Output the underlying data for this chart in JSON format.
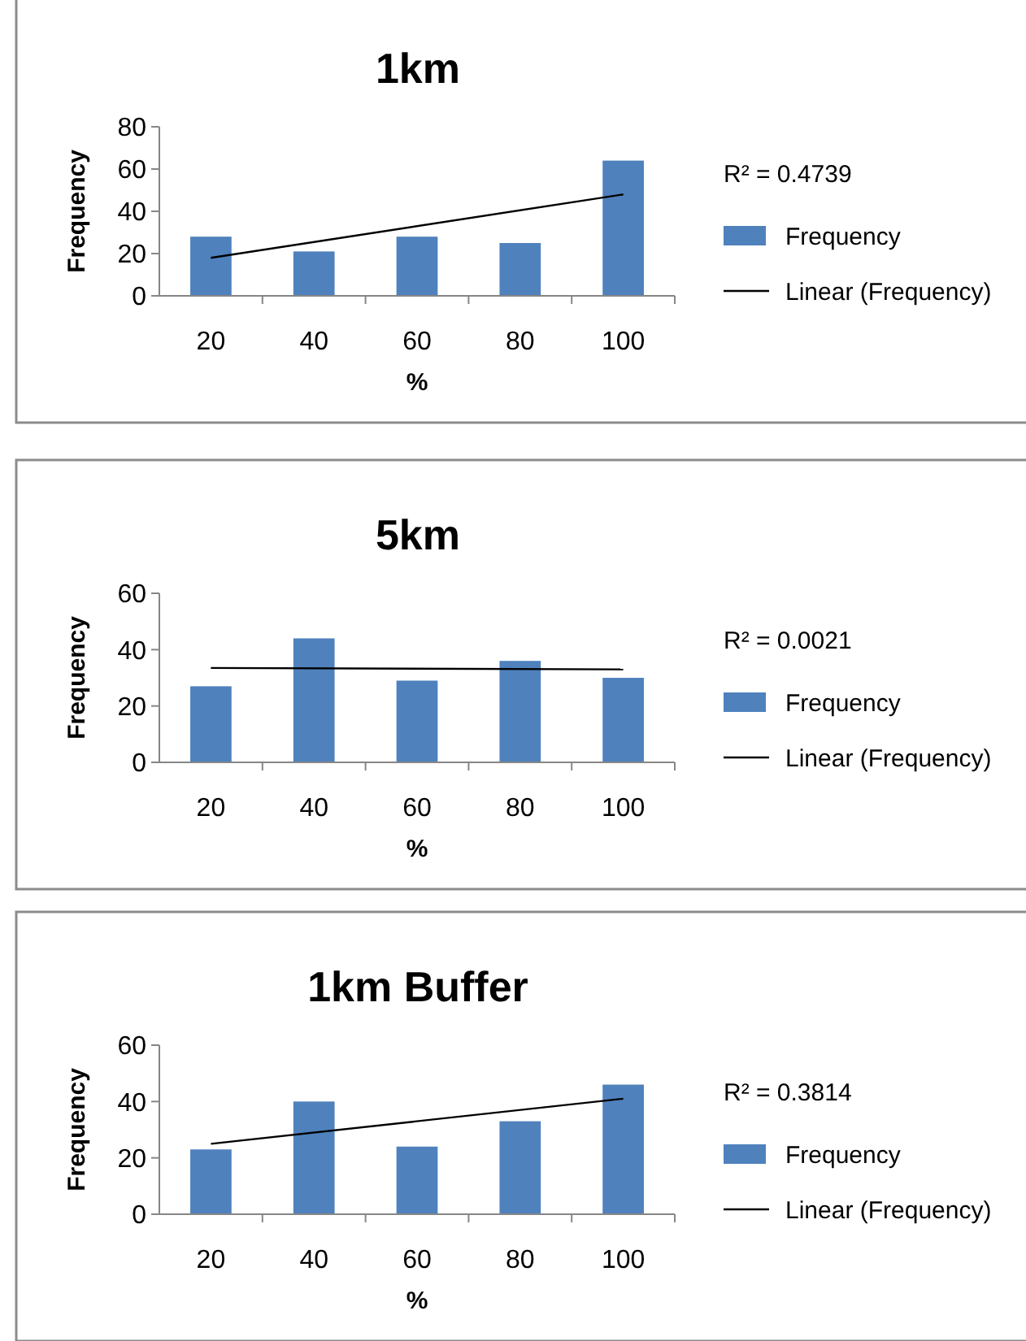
{
  "chart_data": [
    {
      "type": "bar",
      "title": "1km",
      "xlabel": "%",
      "ylabel": "Frequency",
      "categories": [
        "20",
        "40",
        "60",
        "80",
        "100"
      ],
      "ylim": [
        0,
        80
      ],
      "yticks": [
        0,
        20,
        40,
        60,
        80
      ],
      "legend": "right",
      "annotations": [
        "R² = 0.4739"
      ],
      "series": [
        {
          "name": "Frequency",
          "color": "#4f81bd",
          "values": [
            28,
            21,
            28,
            25,
            64
          ]
        },
        {
          "type": "line",
          "name": "Linear (Frequency)",
          "color": "#000000",
          "values": [
            18,
            null,
            null,
            null,
            48
          ]
        }
      ]
    },
    {
      "type": "bar",
      "title": "5km",
      "xlabel": "%",
      "ylabel": "Frequency",
      "categories": [
        "20",
        "40",
        "60",
        "80",
        "100"
      ],
      "ylim": [
        0,
        60
      ],
      "yticks": [
        0,
        20,
        40,
        60
      ],
      "legend": "right",
      "annotations": [
        "R² = 0.0021"
      ],
      "series": [
        {
          "name": "Frequency",
          "color": "#4f81bd",
          "values": [
            27,
            44,
            29,
            36,
            30
          ]
        },
        {
          "type": "line",
          "name": "Linear (Frequency)",
          "color": "#000000",
          "values": [
            33.5,
            null,
            null,
            null,
            33
          ]
        }
      ]
    },
    {
      "type": "bar",
      "title": "1km Buffer",
      "xlabel": "%",
      "ylabel": "Frequency",
      "categories": [
        "20",
        "40",
        "60",
        "80",
        "100"
      ],
      "ylim": [
        0,
        60
      ],
      "yticks": [
        0,
        20,
        40,
        60
      ],
      "legend": "right",
      "annotations": [
        "R² = 0.3814"
      ],
      "series": [
        {
          "name": "Frequency",
          "color": "#4f81bd",
          "values": [
            23,
            40,
            24,
            33,
            46
          ]
        },
        {
          "type": "line",
          "name": "Linear (Frequency)",
          "color": "#000000",
          "values": [
            25,
            null,
            null,
            null,
            41
          ]
        }
      ]
    }
  ]
}
